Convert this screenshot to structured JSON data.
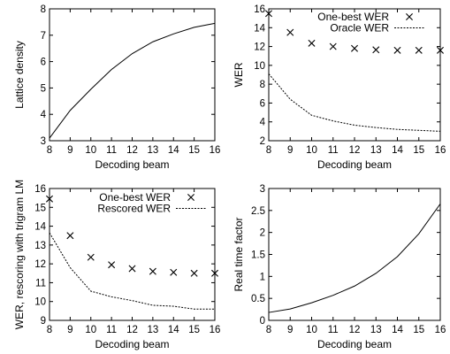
{
  "chart_data": [
    {
      "type": "line",
      "xlabel": "Decoding beam",
      "ylabel": "Lattice density",
      "xlim": [
        8,
        16
      ],
      "ylim": [
        3,
        8
      ],
      "xticks": [
        8,
        9,
        10,
        11,
        12,
        13,
        14,
        15,
        16
      ],
      "yticks": [
        3,
        4,
        5,
        6,
        7,
        8
      ],
      "x": [
        8,
        9,
        10,
        11,
        12,
        13,
        14,
        15,
        16
      ],
      "series": [
        {
          "name": "",
          "style": "solid",
          "values": [
            3.1,
            4.15,
            4.95,
            5.7,
            6.3,
            6.75,
            7.05,
            7.3,
            7.45
          ]
        }
      ],
      "legend": []
    },
    {
      "type": "line",
      "xlabel": "Decoding beam",
      "ylabel": "WER",
      "xlim": [
        8,
        16
      ],
      "ylim": [
        2,
        16
      ],
      "xticks": [
        8,
        9,
        10,
        11,
        12,
        13,
        14,
        15,
        16
      ],
      "yticks": [
        2,
        4,
        6,
        8,
        10,
        12,
        14,
        16
      ],
      "x": [
        8,
        9,
        10,
        11,
        12,
        13,
        14,
        15,
        16
      ],
      "series": [
        {
          "name": "One-best WER",
          "style": "cross",
          "values": [
            15.5,
            13.5,
            12.35,
            12.0,
            11.8,
            11.65,
            11.6,
            11.6,
            11.6
          ]
        },
        {
          "name": "Oracle WER",
          "style": "dotted",
          "values": [
            9.1,
            6.4,
            4.7,
            4.1,
            3.65,
            3.4,
            3.2,
            3.1,
            3.0
          ]
        }
      ],
      "legend": [
        "One-best WER",
        "Oracle WER"
      ]
    },
    {
      "type": "line",
      "xlabel": "Decoding beam",
      "ylabel": "WER, rescoring with trigram LM",
      "xlim": [
        8,
        16
      ],
      "ylim": [
        9,
        16
      ],
      "xticks": [
        8,
        9,
        10,
        11,
        12,
        13,
        14,
        15,
        16
      ],
      "yticks": [
        9,
        10,
        11,
        12,
        13,
        14,
        15,
        16
      ],
      "x": [
        8,
        9,
        10,
        11,
        12,
        13,
        14,
        15,
        16
      ],
      "series": [
        {
          "name": "One-best WER",
          "style": "cross",
          "values": [
            15.45,
            13.5,
            12.35,
            11.95,
            11.75,
            11.6,
            11.55,
            11.5,
            11.5
          ]
        },
        {
          "name": "Rescored WER",
          "style": "dotted",
          "values": [
            13.65,
            11.8,
            10.55,
            10.25,
            10.05,
            9.8,
            9.75,
            9.6,
            9.6
          ]
        }
      ],
      "legend": [
        "One-best WER",
        "Rescored WER"
      ]
    },
    {
      "type": "line",
      "xlabel": "Decoding beam",
      "ylabel": "Real time factor",
      "xlim": [
        8,
        16
      ],
      "ylim": [
        0,
        3
      ],
      "xticks": [
        8,
        9,
        10,
        11,
        12,
        13,
        14,
        15,
        16
      ],
      "yticks": [
        0,
        0.5,
        1,
        1.5,
        2,
        2.5,
        3
      ],
      "x": [
        8,
        9,
        10,
        11,
        12,
        13,
        14,
        15,
        16
      ],
      "series": [
        {
          "name": "",
          "style": "solid",
          "values": [
            0.18,
            0.26,
            0.4,
            0.57,
            0.78,
            1.07,
            1.45,
            1.97,
            2.65
          ]
        }
      ],
      "legend": []
    }
  ]
}
